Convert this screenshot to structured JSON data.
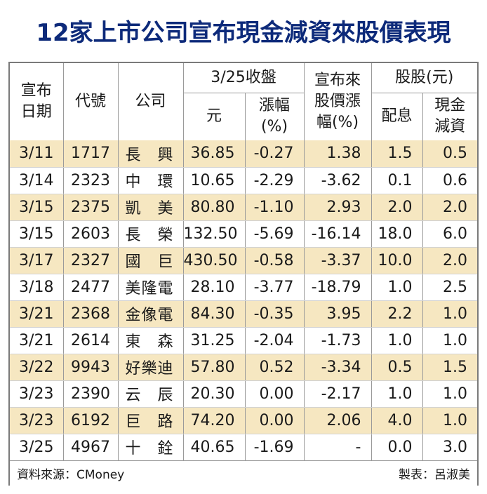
{
  "title": "12家上市公司宣布現金減資來股價表現",
  "headers": {
    "date": [
      "宣布",
      "日期"
    ],
    "code": "代號",
    "company": "公司",
    "close_group": "3/25收盤",
    "close_price": "元",
    "change_pct": [
      "漲幅",
      "(%)"
    ],
    "since_announce": [
      "宣布來",
      "股價漲",
      "幅(%)"
    ],
    "dividend_group": "股股(元)",
    "dividend": "配息",
    "cash_reduction": [
      "現金",
      "減資"
    ]
  },
  "rows": [
    {
      "date": "3/11",
      "code": "1717",
      "company": "長興",
      "price": "36.85",
      "change": "-0.27",
      "since": "1.38",
      "dividend": "1.5",
      "reduction": "0.5"
    },
    {
      "date": "3/14",
      "code": "2323",
      "company": "中環",
      "price": "10.65",
      "change": "-2.29",
      "since": "-3.62",
      "dividend": "0.1",
      "reduction": "0.6"
    },
    {
      "date": "3/15",
      "code": "2375",
      "company": "凱美",
      "price": "80.80",
      "change": "-1.10",
      "since": "2.93",
      "dividend": "2.0",
      "reduction": "2.0"
    },
    {
      "date": "3/15",
      "code": "2603",
      "company": "長榮",
      "price": "132.50",
      "change": "-5.69",
      "since": "-16.14",
      "dividend": "18.0",
      "reduction": "6.0"
    },
    {
      "date": "3/17",
      "code": "2327",
      "company": "國巨",
      "price": "430.50",
      "change": "-0.58",
      "since": "-3.37",
      "dividend": "10.0",
      "reduction": "2.0"
    },
    {
      "date": "3/18",
      "code": "2477",
      "company": "美隆電",
      "price": "28.10",
      "change": "-3.77",
      "since": "-18.79",
      "dividend": "1.0",
      "reduction": "2.5"
    },
    {
      "date": "3/21",
      "code": "2368",
      "company": "金像電",
      "price": "84.30",
      "change": "-0.35",
      "since": "3.95",
      "dividend": "2.2",
      "reduction": "1.0"
    },
    {
      "date": "3/21",
      "code": "2614",
      "company": "東森",
      "price": "31.25",
      "change": "-2.04",
      "since": "-1.73",
      "dividend": "1.0",
      "reduction": "1.0"
    },
    {
      "date": "3/22",
      "code": "9943",
      "company": "好樂迪",
      "price": "57.80",
      "change": "0.52",
      "since": "-3.34",
      "dividend": "0.5",
      "reduction": "1.5"
    },
    {
      "date": "3/23",
      "code": "2390",
      "company": "云辰",
      "price": "20.30",
      "change": "0.00",
      "since": "-2.17",
      "dividend": "1.0",
      "reduction": "1.0"
    },
    {
      "date": "3/23",
      "code": "6192",
      "company": "巨路",
      "price": "74.20",
      "change": "0.00",
      "since": "2.06",
      "dividend": "4.0",
      "reduction": "1.0"
    },
    {
      "date": "3/25",
      "code": "4967",
      "company": "十銓",
      "price": "40.65",
      "change": "-1.69",
      "since": "-",
      "dividend": "0.0",
      "reduction": "3.0"
    }
  ],
  "footer": {
    "source": "資料來源：CMoney",
    "credit": "製表：呂淑美"
  }
}
